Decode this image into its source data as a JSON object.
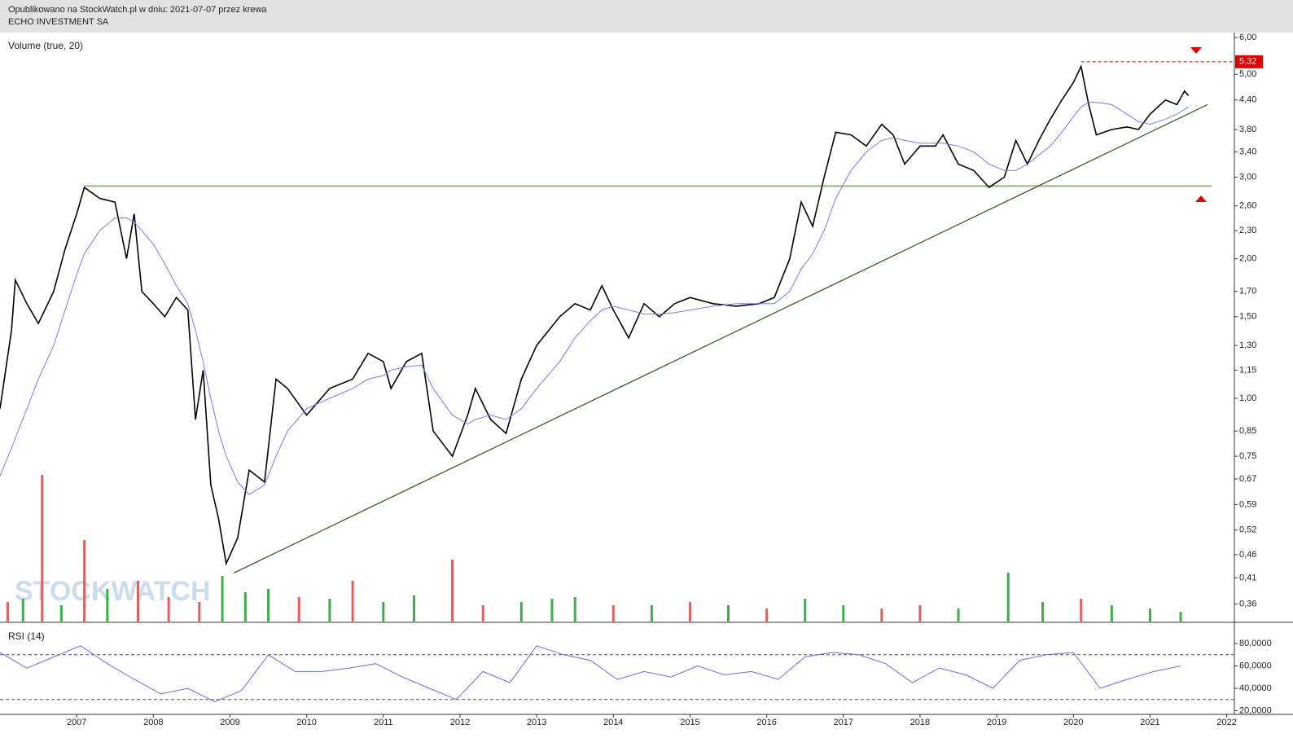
{
  "header": {
    "line1": "Opublikowano na StockWatch.pl w dniu: 2021-07-07 przez krewa",
    "line2": "ECHO INVESTMENT SA"
  },
  "watermark": "STOCKWATCH",
  "chart_data": [
    {
      "type": "line",
      "label": "Volume (true, 20)",
      "log_y": true,
      "x": [
        2006.0,
        2006.15,
        2006.2,
        2006.35,
        2006.5,
        2006.7,
        2006.85,
        2007.0,
        2007.1,
        2007.3,
        2007.5,
        2007.65,
        2007.75,
        2007.85,
        2008.0,
        2008.15,
        2008.3,
        2008.45,
        2008.55,
        2008.65,
        2008.75,
        2008.85,
        2008.95,
        2009.1,
        2009.25,
        2009.45,
        2009.6,
        2009.75,
        2010.0,
        2010.3,
        2010.6,
        2010.8,
        2011.0,
        2011.1,
        2011.3,
        2011.5,
        2011.65,
        2011.9,
        2012.1,
        2012.2,
        2012.4,
        2012.6,
        2012.8,
        2013.0,
        2013.3,
        2013.5,
        2013.7,
        2013.85,
        2014.0,
        2014.2,
        2014.4,
        2014.6,
        2014.8,
        2015.0,
        2015.3,
        2015.6,
        2015.9,
        2016.1,
        2016.3,
        2016.45,
        2016.6,
        2016.75,
        2016.9,
        2017.1,
        2017.3,
        2017.5,
        2017.65,
        2017.8,
        2018.0,
        2018.2,
        2018.3,
        2018.5,
        2018.7,
        2018.9,
        2019.1,
        2019.25,
        2019.4,
        2019.55,
        2019.7,
        2019.85,
        2020.0,
        2020.1,
        2020.2,
        2020.3,
        2020.5,
        2020.7,
        2020.85,
        2021.0,
        2021.2,
        2021.35,
        2021.45,
        2021.5
      ],
      "series": [
        {
          "color": "#000000",
          "values": [
            0.95,
            1.4,
            1.8,
            1.6,
            1.45,
            1.7,
            2.1,
            2.5,
            2.85,
            2.7,
            2.65,
            2.0,
            2.5,
            1.7,
            1.6,
            1.5,
            1.65,
            1.55,
            0.9,
            1.15,
            0.65,
            0.55,
            0.44,
            0.5,
            0.7,
            0.66,
            1.1,
            1.05,
            0.92,
            1.05,
            1.1,
            1.25,
            1.2,
            1.05,
            1.2,
            1.25,
            0.85,
            0.75,
            0.92,
            1.05,
            0.9,
            0.84,
            1.1,
            1.3,
            1.5,
            1.6,
            1.55,
            1.75,
            1.55,
            1.35,
            1.6,
            1.5,
            1.6,
            1.65,
            1.6,
            1.58,
            1.6,
            1.65,
            2.0,
            2.65,
            2.35,
            3.0,
            3.75,
            3.7,
            3.5,
            3.9,
            3.7,
            3.2,
            3.5,
            3.5,
            3.7,
            3.2,
            3.1,
            2.85,
            3.0,
            3.6,
            3.2,
            3.6,
            4.0,
            4.4,
            4.8,
            5.2,
            4.3,
            3.7,
            3.8,
            3.85,
            3.8,
            4.1,
            4.4,
            4.3,
            4.6,
            4.5
          ]
        },
        {
          "color": "#7b7bea",
          "values": [
            0.68,
            0.78,
            0.82,
            0.95,
            1.1,
            1.3,
            1.55,
            1.85,
            2.05,
            2.3,
            2.45,
            2.45,
            2.4,
            2.3,
            2.15,
            1.95,
            1.75,
            1.6,
            1.4,
            1.2,
            1.0,
            0.85,
            0.75,
            0.66,
            0.62,
            0.65,
            0.75,
            0.85,
            0.95,
            1.0,
            1.05,
            1.1,
            1.12,
            1.15,
            1.17,
            1.18,
            1.05,
            0.92,
            0.88,
            0.9,
            0.92,
            0.9,
            0.95,
            1.05,
            1.2,
            1.35,
            1.47,
            1.55,
            1.58,
            1.55,
            1.52,
            1.52,
            1.53,
            1.55,
            1.58,
            1.6,
            1.6,
            1.6,
            1.7,
            1.9,
            2.05,
            2.3,
            2.7,
            3.1,
            3.4,
            3.6,
            3.65,
            3.6,
            3.55,
            3.55,
            3.55,
            3.5,
            3.4,
            3.2,
            3.1,
            3.1,
            3.2,
            3.35,
            3.5,
            3.75,
            4.05,
            4.25,
            4.35,
            4.35,
            4.3,
            4.1,
            3.95,
            3.9,
            4.0,
            4.1,
            4.2,
            4.25
          ]
        }
      ],
      "xlim": [
        2006.0,
        2022.1
      ],
      "ylim": [
        0.33,
        6.15
      ],
      "yticks": [
        {
          "value": 6.0,
          "label": "6,00"
        },
        {
          "value": 5.0,
          "label": "5,00"
        },
        {
          "value": 4.4,
          "label": "4,40"
        },
        {
          "value": 3.8,
          "label": "3,80"
        },
        {
          "value": 3.4,
          "label": "3,40"
        },
        {
          "value": 3.0,
          "label": "3,00"
        },
        {
          "value": 2.6,
          "label": "2,60"
        },
        {
          "value": 2.3,
          "label": "2,30"
        },
        {
          "value": 2.0,
          "label": "2,00"
        },
        {
          "value": 1.7,
          "label": "1,70"
        },
        {
          "value": 1.5,
          "label": "1,50"
        },
        {
          "value": 1.3,
          "label": "1,30"
        },
        {
          "value": 1.15,
          "label": "1,15"
        },
        {
          "value": 1.0,
          "label": "1,00"
        },
        {
          "value": 0.85,
          "label": "0,85"
        },
        {
          "value": 0.75,
          "label": "0,75"
        },
        {
          "value": 0.67,
          "label": "0,67"
        },
        {
          "value": 0.59,
          "label": "0,59"
        },
        {
          "value": 0.52,
          "label": "0,52"
        },
        {
          "value": 0.46,
          "label": "0,46"
        },
        {
          "value": 0.41,
          "label": "0,41"
        },
        {
          "value": 0.36,
          "label": "0,36"
        }
      ],
      "support": {
        "value": 2.87,
        "color": "#a9c49a"
      },
      "trendline": {
        "x": [
          2009.05,
          2021.75
        ],
        "values": [
          0.42,
          4.3
        ],
        "color": "#3d5a2a"
      },
      "annotation": {
        "value": 5.32,
        "label": "5,32",
        "color": "#e00000"
      },
      "volume": {
        "vlim": [
          0,
          100
        ],
        "x": [
          2006.1,
          2006.3,
          2006.55,
          2006.8,
          2007.1,
          2007.4,
          2007.8,
          2008.2,
          2008.6,
          2008.9,
          2009.2,
          2009.5,
          2009.9,
          2010.3,
          2010.6,
          2011.0,
          2011.4,
          2011.9,
          2012.3,
          2012.8,
          2013.2,
          2013.5,
          2014.0,
          2014.5,
          2015.0,
          2015.5,
          2016.0,
          2016.5,
          2017.0,
          2017.5,
          2018.0,
          2018.5,
          2019.15,
          2019.6,
          2020.1,
          2020.5,
          2021.0,
          2021.4
        ],
        "values": [
          12,
          14,
          90,
          10,
          50,
          20,
          25,
          15,
          12,
          28,
          18,
          20,
          15,
          14,
          25,
          12,
          16,
          38,
          10,
          12,
          14,
          15,
          10,
          10,
          12,
          10,
          8,
          14,
          10,
          8,
          10,
          8,
          30,
          12,
          14,
          10,
          8,
          6
        ],
        "colors": [
          "#e06060",
          "#3cae4a",
          "#e06060",
          "#3cae4a",
          "#e06060",
          "#3cae4a",
          "#e06060",
          "#e06060",
          "#e06060",
          "#3cae4a",
          "#3cae4a",
          "#3cae4a",
          "#e06060",
          "#3cae4a",
          "#e06060",
          "#3cae4a",
          "#3cae4a",
          "#e06060",
          "#e06060",
          "#3cae4a",
          "#3cae4a",
          "#3cae4a",
          "#e06060",
          "#3cae4a",
          "#e06060",
          "#3cae4a",
          "#e06060",
          "#3cae4a",
          "#3cae4a",
          "#e06060",
          "#e06060",
          "#3cae4a",
          "#3cae4a",
          "#3cae4a",
          "#e06060",
          "#3cae4a",
          "#3cae4a",
          "#3cae4a"
        ]
      }
    },
    {
      "type": "line",
      "label": "RSI (14)",
      "x": [
        2006.0,
        2006.35,
        2006.7,
        2007.05,
        2007.4,
        2007.75,
        2008.1,
        2008.45,
        2008.8,
        2009.15,
        2009.5,
        2009.85,
        2010.2,
        2010.55,
        2010.9,
        2011.25,
        2011.6,
        2011.95,
        2012.3,
        2012.65,
        2013.0,
        2013.35,
        2013.7,
        2014.05,
        2014.4,
        2014.75,
        2015.1,
        2015.45,
        2015.8,
        2016.15,
        2016.5,
        2016.85,
        2017.2,
        2017.55,
        2017.9,
        2018.25,
        2018.6,
        2018.95,
        2019.3,
        2019.65,
        2020.0,
        2020.35,
        2020.7,
        2021.05,
        2021.4
      ],
      "series": [
        {
          "color": "#6b6be0",
          "values": [
            72,
            58,
            68,
            78,
            62,
            48,
            35,
            40,
            28,
            38,
            70,
            55,
            55,
            58,
            62,
            50,
            40,
            30,
            55,
            45,
            78,
            70,
            65,
            48,
            55,
            50,
            60,
            52,
            55,
            48,
            68,
            72,
            70,
            62,
            45,
            58,
            52,
            40,
            65,
            70,
            72,
            40,
            48,
            55,
            60
          ]
        }
      ],
      "xlim": [
        2006.0,
        2022.1
      ],
      "ylim": [
        16.7,
        98.2
      ],
      "yticks": [
        {
          "value": 80,
          "label": "80,0000"
        },
        {
          "value": 60,
          "label": "60,0000"
        },
        {
          "value": 40,
          "label": "40,0000"
        },
        {
          "value": 20,
          "label": "20,0000"
        }
      ],
      "levels": [
        30,
        70
      ],
      "xticks": [
        2007,
        2008,
        2009,
        2010,
        2011,
        2012,
        2013,
        2014,
        2015,
        2016,
        2017,
        2018,
        2019,
        2020,
        2021,
        2022
      ]
    }
  ]
}
